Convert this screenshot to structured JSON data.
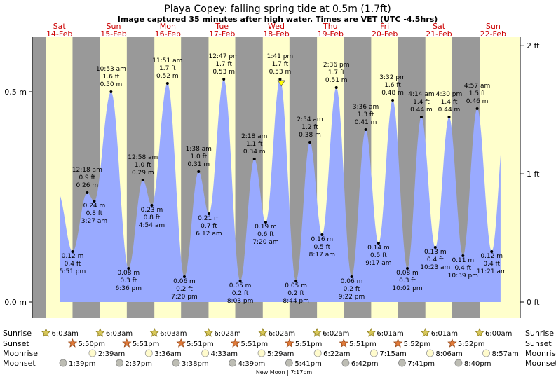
{
  "chart_data": {
    "type": "area",
    "title": "Playa Copey: falling  spring tide at 0.5m (1.7ft)",
    "subtitle": "Image captured 35 minutes after high water. Times are VET (UTC -4.5hrs)",
    "y_left_unit": "m",
    "y_right_unit": "ft",
    "y_left_ticks": [
      {
        "value": 0.0,
        "label": "0.0 m"
      },
      {
        "value": 0.5,
        "label": "0.5 m"
      }
    ],
    "y_right_ticks": [
      {
        "value": 0,
        "label": "0 ft"
      },
      {
        "value": 1,
        "label": "1 ft"
      },
      {
        "value": 2,
        "label": "2 ft"
      }
    ],
    "ylim_m": [
      0.0,
      0.61
    ],
    "x_start": "2026-02-14T00:00",
    "x_end": "2026-02-23T00:00",
    "days": [
      {
        "dow": "Sat",
        "date": "14-Feb"
      },
      {
        "dow": "Sun",
        "date": "15-Feb"
      },
      {
        "dow": "Mon",
        "date": "16-Feb"
      },
      {
        "dow": "Tue",
        "date": "17-Feb"
      },
      {
        "dow": "Wed",
        "date": "18-Feb"
      },
      {
        "dow": "Thu",
        "date": "19-Feb"
      },
      {
        "dow": "Fri",
        "date": "20-Feb"
      },
      {
        "dow": "Sat",
        "date": "21-Feb"
      },
      {
        "dow": "Sun",
        "date": "22-Feb"
      }
    ],
    "tides": [
      {
        "time": "2026-02-14T17:51",
        "type": "low",
        "m": 0.12,
        "m_label": "0.12 m",
        "ft_label": "0.4 ft",
        "time_label": "5:51 pm"
      },
      {
        "time": "2026-02-15T00:18",
        "type": "high",
        "m": 0.26,
        "m_label": "0.26 m",
        "ft_label": "0.9 ft",
        "time_label": "12:18 am"
      },
      {
        "time": "2026-02-15T03:27",
        "type": "low",
        "m": 0.24,
        "m_label": "0.24 m",
        "ft_label": "0.8 ft",
        "time_label": "3:27 am"
      },
      {
        "time": "2026-02-15T10:53",
        "type": "high",
        "m": 0.5,
        "m_label": "0.50 m",
        "ft_label": "1.6 ft",
        "time_label": "10:53 am"
      },
      {
        "time": "2026-02-15T18:36",
        "type": "low",
        "m": 0.08,
        "m_label": "0.08 m",
        "ft_label": "0.3 ft",
        "time_label": "6:36 pm"
      },
      {
        "time": "2026-02-16T00:58",
        "type": "high",
        "m": 0.29,
        "m_label": "0.29 m",
        "ft_label": "1.0 ft",
        "time_label": "12:58 am"
      },
      {
        "time": "2026-02-16T04:54",
        "type": "low",
        "m": 0.23,
        "m_label": "0.23 m",
        "ft_label": "0.8 ft",
        "time_label": "4:54 am"
      },
      {
        "time": "2026-02-16T11:51",
        "type": "high",
        "m": 0.52,
        "m_label": "0.52 m",
        "ft_label": "1.7 ft",
        "time_label": "11:51 am"
      },
      {
        "time": "2026-02-16T19:20",
        "type": "low",
        "m": 0.06,
        "m_label": "0.06 m",
        "ft_label": "0.2 ft",
        "time_label": "7:20 pm"
      },
      {
        "time": "2026-02-17T01:38",
        "type": "high",
        "m": 0.31,
        "m_label": "0.31 m",
        "ft_label": "1.0 ft",
        "time_label": "1:38 am"
      },
      {
        "time": "2026-02-17T06:12",
        "type": "low",
        "m": 0.21,
        "m_label": "0.21 m",
        "ft_label": "0.7 ft",
        "time_label": "6:12 am"
      },
      {
        "time": "2026-02-17T12:47",
        "type": "high",
        "m": 0.53,
        "m_label": "0.53 m",
        "ft_label": "1.7 ft",
        "time_label": "12:47 pm"
      },
      {
        "time": "2026-02-17T20:03",
        "type": "low",
        "m": 0.05,
        "m_label": "0.05 m",
        "ft_label": "0.2 ft",
        "time_label": "8:03 pm"
      },
      {
        "time": "2026-02-18T02:18",
        "type": "high",
        "m": 0.34,
        "m_label": "0.34 m",
        "ft_label": "1.1 ft",
        "time_label": "2:18 am"
      },
      {
        "time": "2026-02-18T07:20",
        "type": "low",
        "m": 0.19,
        "m_label": "0.19 m",
        "ft_label": "0.6 ft",
        "time_label": "7:20 am"
      },
      {
        "time": "2026-02-18T13:41",
        "type": "high",
        "m": 0.53,
        "m_label": "0.53 m",
        "ft_label": "1.7 ft",
        "time_label": "1:41 pm"
      },
      {
        "time": "2026-02-18T20:44",
        "type": "low",
        "m": 0.05,
        "m_label": "0.05 m",
        "ft_label": "0.2 ft",
        "time_label": "8:44 pm"
      },
      {
        "time": "2026-02-19T02:54",
        "type": "high",
        "m": 0.38,
        "m_label": "0.38 m",
        "ft_label": "1.2 ft",
        "time_label": "2:54 am"
      },
      {
        "time": "2026-02-19T08:17",
        "type": "low",
        "m": 0.16,
        "m_label": "0.16 m",
        "ft_label": "0.5 ft",
        "time_label": "8:17 am"
      },
      {
        "time": "2026-02-19T14:36",
        "type": "high",
        "m": 0.51,
        "m_label": "0.51 m",
        "ft_label": "1.7 ft",
        "time_label": "2:36 pm"
      },
      {
        "time": "2026-02-19T21:22",
        "type": "low",
        "m": 0.06,
        "m_label": "0.06 m",
        "ft_label": "0.2 ft",
        "time_label": "9:22 pm"
      },
      {
        "time": "2026-02-20T03:36",
        "type": "high",
        "m": 0.41,
        "m_label": "0.41 m",
        "ft_label": "1.3 ft",
        "time_label": "3:36 am"
      },
      {
        "time": "2026-02-20T09:17",
        "type": "low",
        "m": 0.14,
        "m_label": "0.14 m",
        "ft_label": "0.5 ft",
        "time_label": "9:17 am"
      },
      {
        "time": "2026-02-20T15:32",
        "type": "high",
        "m": 0.48,
        "m_label": "0.48 m",
        "ft_label": "1.6 ft",
        "time_label": "3:32 pm"
      },
      {
        "time": "2026-02-20T22:02",
        "type": "low",
        "m": 0.08,
        "m_label": "0.08 m",
        "ft_label": "0.3 ft",
        "time_label": "10:02 pm"
      },
      {
        "time": "2026-02-21T04:14",
        "type": "high",
        "m": 0.44,
        "m_label": "0.44 m",
        "ft_label": "1.4 ft",
        "time_label": "4:14 am"
      },
      {
        "time": "2026-02-21T10:23",
        "type": "low",
        "m": 0.13,
        "m_label": "0.13 m",
        "ft_label": "0.4 ft",
        "time_label": "10:23 am"
      },
      {
        "time": "2026-02-21T16:30",
        "type": "high",
        "m": 0.44,
        "m_label": "0.44 m",
        "ft_label": "1.4 ft",
        "time_label": "4:30 pm"
      },
      {
        "time": "2026-02-21T22:39",
        "type": "low",
        "m": 0.11,
        "m_label": "0.11 m",
        "ft_label": "0.4 ft",
        "time_label": "10:39 pm"
      },
      {
        "time": "2026-02-22T04:57",
        "type": "high",
        "m": 0.46,
        "m_label": "0.46 m",
        "ft_label": "1.5 ft",
        "time_label": "4:57 am"
      },
      {
        "time": "2026-02-22T11:21",
        "type": "low",
        "m": 0.12,
        "m_label": "0.12 m",
        "ft_label": "0.4 ft",
        "time_label": "11:21 am"
      }
    ],
    "current_marker": {
      "time": "2026-02-18T14:16"
    },
    "sunrise": [
      "6:03am",
      "6:03am",
      "6:03am",
      "6:02am",
      "6:02am",
      "6:02am",
      "6:01am",
      "6:01am",
      "6:00am"
    ],
    "sunset": [
      "5:50pm",
      "5:51pm",
      "5:51pm",
      "5:51pm",
      "5:51pm",
      "5:51pm",
      "5:52pm",
      "5:52pm"
    ],
    "moonrise": [
      "2:39am",
      "3:36am",
      "4:33am",
      "5:29am",
      "6:22am",
      "7:15am",
      "8:06am",
      "8:57am"
    ],
    "moonset": [
      "1:39pm",
      "2:37pm",
      "3:38pm",
      "4:39pm",
      "5:41pm",
      "6:42pm",
      "7:41pm",
      "8:40pm"
    ],
    "sunrise_times": [
      "2026-02-14T06:03",
      "2026-02-15T06:03",
      "2026-02-16T06:03",
      "2026-02-17T06:02",
      "2026-02-18T06:02",
      "2026-02-19T06:02",
      "2026-02-20T06:01",
      "2026-02-21T06:01",
      "2026-02-22T06:00"
    ],
    "sunset_times": [
      "2026-02-14T17:50",
      "2026-02-15T17:51",
      "2026-02-16T17:51",
      "2026-02-17T17:51",
      "2026-02-18T17:51",
      "2026-02-19T17:51",
      "2026-02-20T17:52",
      "2026-02-21T17:52"
    ],
    "moonrise_times": [
      "2026-02-15T02:39",
      "2026-02-16T03:36",
      "2026-02-17T04:33",
      "2026-02-18T05:29",
      "2026-02-19T06:22",
      "2026-02-20T07:15",
      "2026-02-21T08:06",
      "2026-02-22T08:57"
    ],
    "moonset_times": [
      "2026-02-14T13:39",
      "2026-02-15T14:37",
      "2026-02-16T15:38",
      "2026-02-17T16:39",
      "2026-02-18T17:41",
      "2026-02-19T18:42",
      "2026-02-20T19:41",
      "2026-02-21T20:40"
    ],
    "row_labels": {
      "sunrise": "Sunrise",
      "sunset": "Sunset",
      "moonrise": "Moonrise",
      "moonset": "Moonset"
    },
    "footnote": "New Moon | 7:17pm",
    "colors": {
      "day": "#ffffcc",
      "night": "#999999",
      "water": "#99aaff",
      "outer": "#ffffff",
      "day_label": "#cc0000",
      "marker": "#ffff00"
    }
  }
}
